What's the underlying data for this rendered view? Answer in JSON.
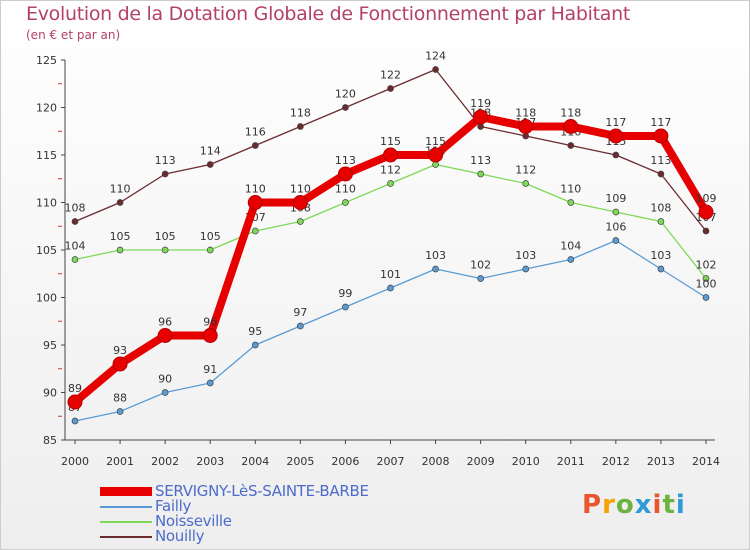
{
  "title": "Evolution de la Dotation Globale de Fonctionnement par Habitant",
  "subtitle": "(en € et par an)",
  "brand": {
    "text": "Proxiti",
    "colors": [
      "#e8572e",
      "#f4a300",
      "#6cb33f",
      "#2e9ad6",
      "#e8572e",
      "#6cb33f",
      "#2e9ad6"
    ]
  },
  "chart_data": {
    "type": "line",
    "title": "Evolution de la Dotation Globale de Fonctionnement par Habitant",
    "xlabel": "",
    "ylabel": "(en € et par an)",
    "ylim": [
      85,
      125
    ],
    "yticks": [
      85,
      90,
      95,
      100,
      105,
      110,
      115,
      120,
      125
    ],
    "x": [
      2000,
      2001,
      2002,
      2003,
      2004,
      2005,
      2006,
      2007,
      2008,
      2009,
      2010,
      2011,
      2012,
      2013,
      2014
    ],
    "series": [
      {
        "name": "Nouilly",
        "color": "#6b2a2e",
        "values": [
          108,
          110,
          113,
          114,
          116,
          118,
          120,
          122,
          124,
          118,
          117,
          116,
          115,
          113,
          107
        ]
      },
      {
        "name": "Noisseville",
        "color": "#7ed957",
        "values": [
          104,
          105,
          105,
          105,
          107,
          108,
          110,
          112,
          114,
          113,
          112,
          110,
          109,
          108,
          102
        ]
      },
      {
        "name": "Failly",
        "color": "#5b9bd5",
        "values": [
          87,
          88,
          90,
          91,
          95,
          97,
          99,
          101,
          103,
          102,
          103,
          104,
          106,
          103,
          100
        ]
      },
      {
        "name": "SERVIGNY-LèS-SAINTE-BARBE",
        "color": "#e60000",
        "values": [
          89,
          93,
          96,
          96,
          110,
          110,
          113,
          115,
          115,
          119,
          118,
          118,
          117,
          117,
          109
        ]
      }
    ],
    "legend": [
      "SERVIGNY-LèS-SAINTE-BARBE",
      "Failly",
      "Noisseville",
      "Nouilly"
    ],
    "legend_position": "bottom-left",
    "grid": false
  }
}
